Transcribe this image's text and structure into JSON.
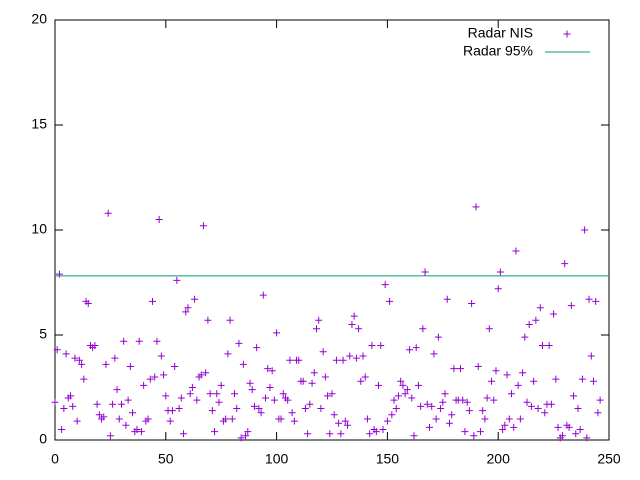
{
  "chart_data": {
    "type": "scatter",
    "xlim": [
      0,
      250
    ],
    "xticks": [
      0,
      50,
      100,
      150,
      200,
      250
    ],
    "ylim": [
      0,
      20
    ],
    "yticks": [
      0,
      5,
      10,
      15,
      20
    ],
    "legend": "top-right",
    "series": [
      {
        "name": "Radar NIS",
        "color": "#9400d3",
        "style": "points",
        "x": [
          0,
          1,
          2,
          3,
          4,
          5,
          6,
          7,
          8,
          9,
          10,
          11,
          12,
          13,
          14,
          15,
          16,
          17,
          18,
          19,
          20,
          21,
          22,
          23,
          24,
          25,
          26,
          27,
          28,
          29,
          30,
          31,
          32,
          33,
          34,
          35,
          36,
          37,
          38,
          39,
          40,
          41,
          42,
          43,
          44,
          45,
          46,
          47,
          48,
          49,
          50,
          51,
          52,
          53,
          54,
          55,
          56,
          57,
          58,
          59,
          60,
          61,
          62,
          63,
          64,
          65,
          66,
          67,
          68,
          69,
          70,
          71,
          72,
          73,
          74,
          75,
          76,
          77,
          78,
          79,
          80,
          81,
          82,
          83,
          84,
          85,
          86,
          87,
          88,
          89,
          90,
          91,
          92,
          93,
          94,
          95,
          96,
          97,
          98,
          99,
          100,
          101,
          102,
          103,
          104,
          105,
          106,
          107,
          108,
          109,
          110,
          111,
          112,
          113,
          114,
          115,
          116,
          117,
          118,
          119,
          120,
          121,
          122,
          123,
          124,
          125,
          126,
          127,
          128,
          129,
          130,
          131,
          132,
          133,
          134,
          135,
          136,
          137,
          138,
          139,
          140,
          141,
          142,
          143,
          144,
          145,
          146,
          147,
          148,
          149,
          150,
          151,
          152,
          153,
          154,
          155,
          156,
          157,
          158,
          159,
          160,
          161,
          162,
          163,
          164,
          165,
          166,
          167,
          168,
          169,
          170,
          171,
          172,
          173,
          174,
          175,
          176,
          177,
          178,
          179,
          180,
          181,
          182,
          183,
          184,
          185,
          186,
          187,
          188,
          189,
          190,
          191,
          192,
          193,
          194,
          195,
          196,
          197,
          198,
          199,
          200,
          201,
          202,
          203,
          204,
          205,
          206,
          207,
          208,
          209,
          210,
          211,
          212,
          213,
          214,
          215,
          216,
          217,
          218,
          219,
          220,
          221,
          222,
          223,
          224,
          225,
          226,
          227,
          228,
          229,
          230,
          231,
          232,
          233,
          234,
          235,
          236,
          237,
          238,
          239,
          240,
          241,
          242,
          243,
          244,
          245,
          246
        ],
        "values": [
          1.8,
          4.3,
          7.9,
          0.5,
          1.5,
          4.1,
          2.0,
          2.1,
          1.6,
          3.9,
          0.9,
          3.8,
          3.6,
          2.9,
          6.6,
          6.5,
          4.5,
          4.4,
          4.5,
          1.7,
          1.2,
          1.0,
          1.1,
          3.6,
          10.8,
          0.2,
          1.7,
          3.9,
          2.4,
          1.0,
          1.7,
          4.7,
          0.7,
          1.9,
          3.5,
          1.3,
          0.4,
          0.5,
          4.7,
          0.4,
          2.6,
          0.9,
          1.0,
          2.9,
          6.6,
          3.0,
          4.7,
          10.5,
          4.0,
          3.1,
          2.1,
          1.4,
          0.9,
          1.4,
          3.5,
          7.6,
          1.5,
          2.0,
          0.3,
          6.1,
          6.3,
          2.2,
          2.5,
          6.7,
          1.9,
          3.0,
          3.1,
          10.2,
          3.2,
          5.7,
          2.2,
          1.4,
          0.4,
          2.2,
          1.8,
          2.6,
          0.9,
          1.0,
          4.1,
          5.7,
          1.0,
          2.2,
          1.5,
          4.6,
          0.1,
          3.6,
          0.2,
          0.4,
          2.7,
          2.4,
          1.6,
          4.4,
          1.5,
          1.3,
          6.9,
          2.0,
          3.4,
          2.5,
          3.3,
          1.9,
          5.1,
          1.0,
          1.0,
          2.2,
          2.0,
          1.9,
          3.8,
          1.3,
          0.9,
          3.8,
          3.8,
          2.8,
          2.8,
          1.5,
          0.3,
          1.7,
          2.7,
          3.2,
          5.3,
          5.7,
          1.5,
          4.2,
          3.0,
          2.1,
          0.3,
          2.2,
          1.2,
          3.8,
          0.8,
          0.3,
          3.8,
          0.9,
          0.7,
          4.0,
          5.5,
          5.9,
          3.9,
          5.3,
          2.8,
          4.0,
          3.0,
          1.0,
          0.3,
          4.5,
          0.5,
          0.4,
          2.6,
          4.5,
          0.5,
          7.4,
          0.9,
          6.6,
          1.2,
          1.9,
          1.5,
          2.1,
          2.8,
          2.6,
          2.2,
          2.4,
          4.3,
          2.0,
          0.2,
          4.4,
          2.6,
          1.6,
          5.3,
          8.0,
          1.7,
          0.6,
          1.6,
          4.1,
          1.0,
          4.9,
          1.5,
          1.8,
          2.2,
          6.7,
          0.8,
          1.2,
          3.4,
          1.9,
          1.9,
          3.4,
          1.9,
          0.4,
          1.8,
          1.4,
          6.5,
          0.2,
          11.1,
          3.5,
          0.4,
          1.4,
          1.0,
          2.0,
          5.3,
          2.8,
          1.9,
          3.3,
          7.2,
          8.0,
          0.5,
          0.7,
          3.1,
          1.0,
          2.2,
          0.6,
          9.0,
          2.6,
          1.0,
          3.2,
          4.9,
          1.8,
          5.5,
          1.6,
          2.8,
          5.7,
          1.5,
          6.3,
          4.5,
          1.3,
          1.7,
          4.5,
          1.7,
          6.0,
          2.9,
          0.6,
          0.1,
          0.2,
          8.4,
          0.7,
          0.6,
          6.4,
          2.1,
          0.3,
          1.5,
          0.5,
          2.9,
          10.0,
          0.1,
          6.7,
          4.0,
          2.8,
          6.6,
          1.3,
          1.9
        ]
      },
      {
        "name": "Radar 95%",
        "color": "#009e73",
        "style": "line",
        "x": [
          0,
          250
        ],
        "values": [
          7.815,
          7.815
        ]
      }
    ]
  }
}
